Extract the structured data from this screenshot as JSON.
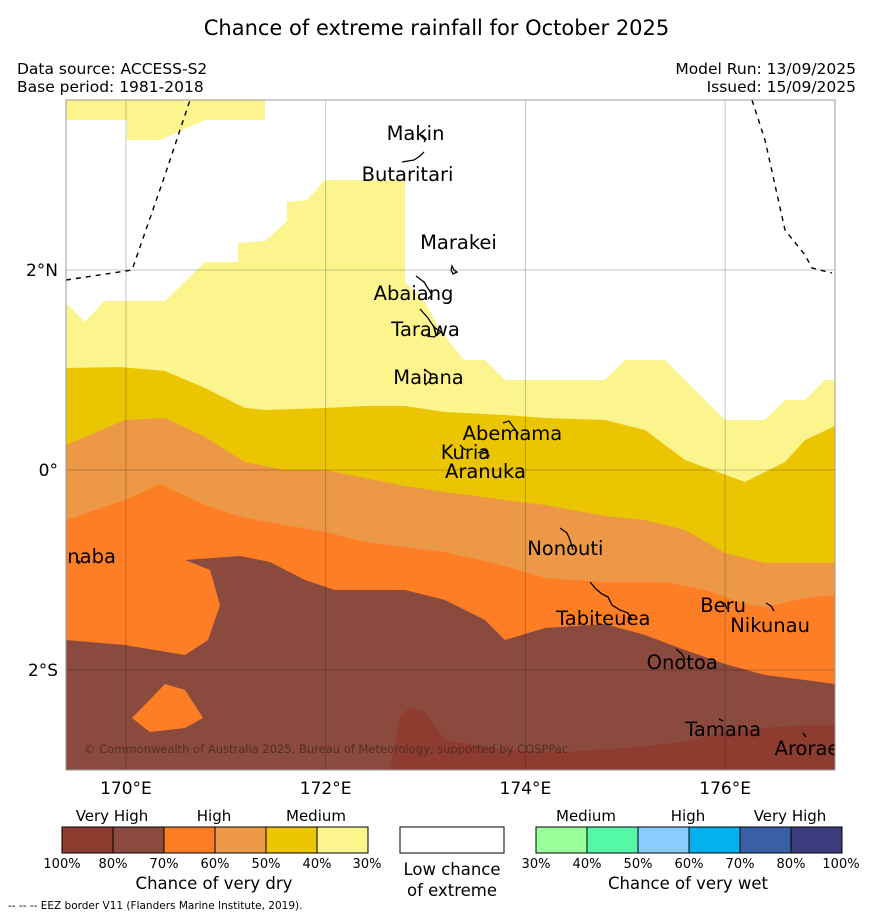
{
  "title": "Chance of extreme rainfall for October 2025",
  "source": {
    "data_source": "Data source: ACCESS-S2",
    "base_period": "Base period: 1981-2018",
    "model_run": "Model Run: 13/09/2025",
    "issued": "Issued: 15/09/2025"
  },
  "map": {
    "lon_range": [
      169.4,
      177.1
    ],
    "lat_range": [
      -3.0,
      3.7
    ],
    "x_ticks": [
      {
        "lon": 170,
        "label": "170°E"
      },
      {
        "lon": 172,
        "label": "172°E"
      },
      {
        "lon": 174,
        "label": "174°E"
      },
      {
        "lon": 176,
        "label": "176°E"
      }
    ],
    "y_ticks": [
      {
        "lat": 2,
        "label": "2°N"
      },
      {
        "lat": 0,
        "label": "0°"
      },
      {
        "lat": -2,
        "label": "2°S"
      }
    ],
    "places": [
      {
        "name": "Makin",
        "lon": 172.9,
        "lat": 3.37
      },
      {
        "name": "Butaritari",
        "lon": 172.82,
        "lat": 2.96
      },
      {
        "name": "Marakei",
        "lon": 173.33,
        "lat": 2.28
      },
      {
        "name": "Abaiang",
        "lon": 172.88,
        "lat": 1.77
      },
      {
        "name": "Tarawa",
        "lon": 173.0,
        "lat": 1.41
      },
      {
        "name": "Maiana",
        "lon": 173.03,
        "lat": 0.93
      },
      {
        "name": "Abemama",
        "lon": 173.87,
        "lat": 0.37
      },
      {
        "name": "Kuria",
        "lon": 173.4,
        "lat": 0.18
      },
      {
        "name": "Aranuka",
        "lon": 173.6,
        "lat": -0.01
      },
      {
        "name": "Nonouti",
        "lon": 174.4,
        "lat": -0.78
      },
      {
        "name": "Tabiteuea",
        "lon": 174.78,
        "lat": -1.48
      },
      {
        "name": "Beru",
        "lon": 175.98,
        "lat": -1.35
      },
      {
        "name": "Nikunau",
        "lon": 176.45,
        "lat": -1.55
      },
      {
        "name": "Onotoa",
        "lon": 175.57,
        "lat": -1.92
      },
      {
        "name": "Tamana",
        "lon": 175.98,
        "lat": -2.59
      },
      {
        "name": "Arorae",
        "lon": 176.82,
        "lat": -2.78
      },
      {
        "name": "Banaba",
        "lon": 169.53,
        "lat": -0.86
      }
    ],
    "copyright": "© Commonwealth of Australia 2025, Bureau of Meteorology, supported by COSPPac"
  },
  "colors": {
    "dry_100_80": "#8e3b30",
    "dry_80_70": "#8b4a3e",
    "dry_70_60": "#fd7e24",
    "dry_60_50": "#ec9847",
    "dry_50_40": "#ecc502",
    "dry_40_30": "#fcf58d",
    "low": "#ffffff",
    "wet_30_40": "#99ff99",
    "wet_40_50": "#55f7a8",
    "wet_50_60": "#88cdfd",
    "wet_60_70": "#04b0ee",
    "wet_70_80": "#3b5fa6",
    "wet_80_100": "#3c3b7d"
  },
  "colorbar": {
    "dry": {
      "groups": [
        "Very High",
        "High",
        "Medium"
      ],
      "ticks": [
        "100%",
        "80%",
        "70%",
        "60%",
        "50%",
        "40%",
        "30%"
      ],
      "title": "Chance of very dry"
    },
    "low": {
      "title_line1": "Low chance",
      "title_line2": "of extreme"
    },
    "wet": {
      "groups": [
        "Medium",
        "High",
        "Very High"
      ],
      "ticks": [
        "30%",
        "40%",
        "50%",
        "60%",
        "70%",
        "80%",
        "100%"
      ],
      "title": "Chance of very wet"
    }
  },
  "footnote": "--  --  -- EEZ border V11 (Flanders Marine Institute, 2019)."
}
